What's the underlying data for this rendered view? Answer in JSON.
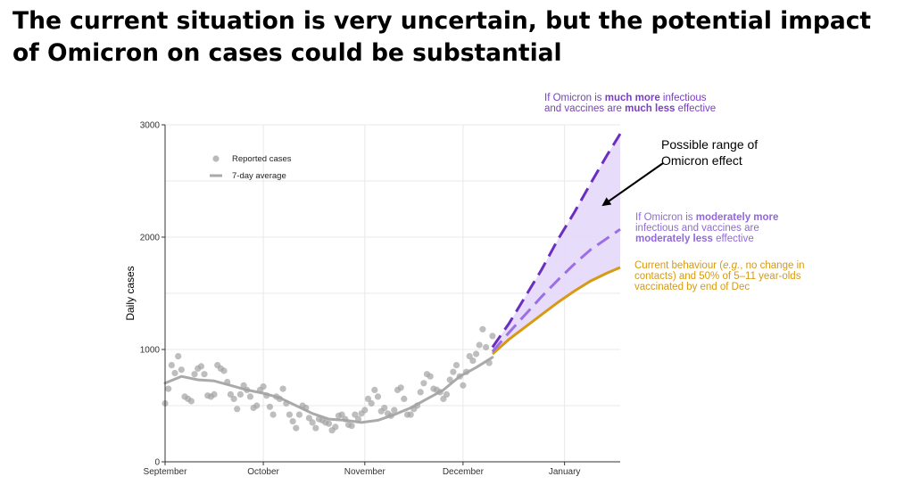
{
  "title": {
    "line1": "The current situation is very uncertain, but the potential impact",
    "line2": "of Omicron on cases could be substantial"
  },
  "annotations": {
    "much_more": {
      "l1a": "If Omicron is ",
      "l1b": "much more",
      "l1c": " infectious",
      "l2a": "and vaccines are ",
      "l2b": "much less",
      "l2c": " effective"
    },
    "range": {
      "line1": "Possible range of",
      "line2": "Omicron effect"
    },
    "moderate": {
      "l1a": "If Omicron is ",
      "l1b": "moderately more",
      "l2": "infectious and vaccines are",
      "l3a": "moderately less",
      "l3b": " effective"
    },
    "current": {
      "l1a": "Current behaviour (",
      "l1b": "e.g.",
      "l1c": ", no change in",
      "l2": "contacts) and 50% of 5–11 year-olds",
      "l3": "vaccinated by end of Dec"
    }
  },
  "colors": {
    "reported": "#a3a3a3",
    "average": "#aaaaaa",
    "much_more": "#6a2fc0",
    "moderate": "#9b6fe6",
    "current": "#d89a14",
    "range_fill": "#e6d8fb",
    "grid": "#e8e8e8"
  },
  "chart_data": {
    "type": "line",
    "title": "",
    "xlabel": "",
    "ylabel": "Daily cases",
    "xlim": [
      0,
      139
    ],
    "ylim": [
      0,
      3000
    ],
    "x_unit": "days since 1 September",
    "x_ticks": [
      {
        "label": "September",
        "x": 0
      },
      {
        "label": "October",
        "x": 30
      },
      {
        "label": "November",
        "x": 61
      },
      {
        "label": "December",
        "x": 91
      },
      {
        "label": "January",
        "x": 122
      }
    ],
    "y_ticks": [
      0,
      1000,
      2000,
      3000
    ],
    "legend": {
      "position": "top-left",
      "items": [
        {
          "label": "Reported cases",
          "kind": "point"
        },
        {
          "label": "7-day average",
          "kind": "line"
        }
      ]
    },
    "series": [
      {
        "name": "Reported cases",
        "kind": "points",
        "x": [
          0,
          1,
          2,
          3,
          4,
          5,
          6,
          7,
          8,
          9,
          10,
          11,
          12,
          13,
          14,
          15,
          16,
          17,
          18,
          19,
          20,
          21,
          22,
          23,
          24,
          25,
          26,
          27,
          28,
          29,
          30,
          31,
          32,
          33,
          34,
          35,
          36,
          37,
          38,
          39,
          40,
          41,
          42,
          43,
          44,
          45,
          46,
          47,
          48,
          49,
          50,
          51,
          52,
          53,
          54,
          55,
          56,
          57,
          58,
          59,
          60,
          61,
          62,
          63,
          64,
          65,
          66,
          67,
          68,
          69,
          70,
          71,
          72,
          73,
          74,
          75,
          76,
          77,
          78,
          79,
          80,
          81,
          82,
          83,
          84,
          85,
          86,
          87,
          88,
          89,
          90,
          91,
          92,
          93,
          94,
          95,
          96,
          97,
          98,
          99,
          100
        ],
        "values": [
          520,
          650,
          860,
          790,
          940,
          820,
          580,
          560,
          540,
          780,
          830,
          850,
          780,
          590,
          580,
          600,
          860,
          830,
          810,
          710,
          600,
          560,
          470,
          600,
          680,
          640,
          580,
          480,
          500,
          640,
          670,
          590,
          490,
          420,
          580,
          560,
          650,
          520,
          420,
          360,
          300,
          420,
          500,
          480,
          390,
          350,
          300,
          380,
          370,
          350,
          340,
          280,
          310,
          410,
          420,
          380,
          330,
          320,
          420,
          380,
          430,
          460,
          560,
          520,
          640,
          580,
          450,
          480,
          430,
          410,
          460,
          640,
          660,
          560,
          420,
          420,
          470,
          500,
          620,
          700,
          780,
          760,
          650,
          640,
          620,
          560,
          600,
          730,
          800,
          860,
          760,
          680,
          800,
          940,
          900,
          960,
          1040,
          1180,
          1020,
          880,
          1120
        ]
      },
      {
        "name": "7-day average",
        "kind": "line",
        "x": [
          0,
          5,
          10,
          15,
          20,
          25,
          30,
          35,
          40,
          45,
          50,
          55,
          60,
          65,
          70,
          75,
          80,
          85,
          90,
          95,
          100
        ],
        "values": [
          700,
          760,
          730,
          720,
          680,
          640,
          610,
          570,
          500,
          430,
          380,
          370,
          350,
          370,
          420,
          480,
          560,
          640,
          760,
          840,
          930
        ]
      },
      {
        "name": "If Omicron is much more infectious and vaccines are much less effective",
        "kind": "dashed",
        "x": [
          100,
          105,
          110,
          115,
          120,
          125,
          130,
          135,
          139
        ],
        "values": [
          1020,
          1230,
          1470,
          1710,
          1980,
          2220,
          2480,
          2730,
          2920
        ]
      },
      {
        "name": "If Omicron is moderately more infectious and vaccines are moderately less effective",
        "kind": "dashed",
        "x": [
          100,
          105,
          110,
          115,
          120,
          125,
          130,
          135,
          139
        ],
        "values": [
          980,
          1150,
          1310,
          1470,
          1620,
          1760,
          1890,
          1990,
          2070
        ]
      },
      {
        "name": "Current behaviour (e.g., no change in contacts) and 50% of 5–11 year-olds vaccinated by end of Dec",
        "kind": "solid",
        "x": [
          100,
          105,
          110,
          115,
          120,
          125,
          130,
          135,
          139
        ],
        "values": [
          960,
          1090,
          1200,
          1310,
          1420,
          1520,
          1610,
          1680,
          1730
        ]
      }
    ]
  }
}
